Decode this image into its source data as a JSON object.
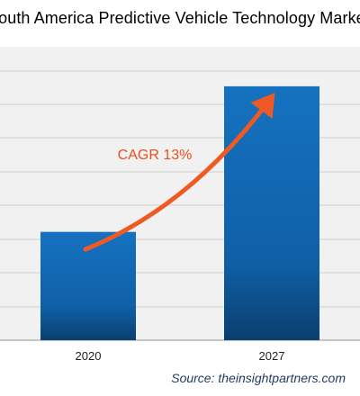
{
  "title": "South America Predictive Vehicle Technology Market",
  "annotation": "CAGR 13%",
  "source": "Source: theinsightpartners.com",
  "colors": {
    "bar_top": "#1572c0",
    "bar_bottom": "#0a3f6f",
    "arrow": "#ef5a24",
    "annotation": "#e84f1d",
    "gridline": "#d0d0d0",
    "plot_background": "#f1f1f1"
  },
  "chart_data": {
    "type": "bar",
    "categories": [
      "2020",
      "2027"
    ],
    "values": [
      0.96,
      2.25
    ],
    "ylim": [
      0,
      2.6
    ],
    "grid": true,
    "annotation": "CAGR 13%"
  }
}
